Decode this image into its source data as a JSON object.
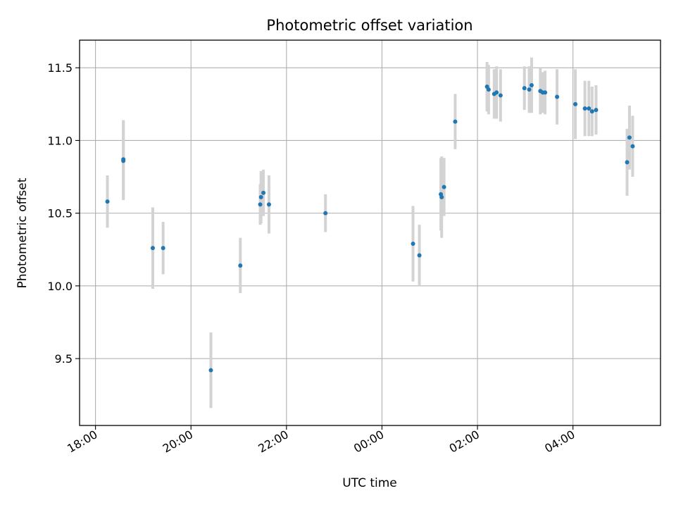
{
  "chart_data": {
    "type": "scatter",
    "title": "Photometric offset variation",
    "xlabel": "UTC time",
    "ylabel": "Photometric offset",
    "x_is_time": true,
    "xlim": [
      "17:40",
      "05:50 +1d"
    ],
    "ylim": [
      9.04,
      11.69
    ],
    "x_ticks": [
      "18:00",
      "20:00",
      "22:00",
      "00:00",
      "02:00",
      "04:00"
    ],
    "y_ticks": [
      "9.5",
      "10.0",
      "10.5",
      "11.0",
      "11.5"
    ],
    "grid": true,
    "legend": "none",
    "colors": {
      "marker": "#1f77b4",
      "errorbar": "#d3d3d3",
      "grid": "#b0b0b0"
    },
    "series": [
      {
        "points": [
          {
            "t": "18:15",
            "y": 10.58,
            "err": 0.18
          },
          {
            "t": "18:35",
            "y": 10.87,
            "err": 0.27
          },
          {
            "t": "18:35",
            "y": 10.86,
            "err": 0.27
          },
          {
            "t": "19:12",
            "y": 10.26,
            "err": 0.28
          },
          {
            "t": "19:25",
            "y": 10.26,
            "err": 0.18
          },
          {
            "t": "20:25",
            "y": 9.42,
            "err": 0.26
          },
          {
            "t": "21:02",
            "y": 10.14,
            "err": 0.19
          },
          {
            "t": "21:27",
            "y": 10.56,
            "err": 0.14
          },
          {
            "t": "21:28",
            "y": 10.61,
            "err": 0.18
          },
          {
            "t": "21:31",
            "y": 10.64,
            "err": 0.16
          },
          {
            "t": "21:38",
            "y": 10.56,
            "err": 0.2
          },
          {
            "t": "22:49",
            "y": 10.5,
            "err": 0.13
          },
          {
            "t": "00:39",
            "y": 10.29,
            "err": 0.26
          },
          {
            "t": "00:47",
            "y": 10.21,
            "err": 0.21
          },
          {
            "t": "01:14",
            "y": 10.63,
            "err": 0.25
          },
          {
            "t": "01:15",
            "y": 10.61,
            "err": 0.28
          },
          {
            "t": "01:18",
            "y": 10.68,
            "err": 0.2
          },
          {
            "t": "01:32",
            "y": 11.13,
            "err": 0.19
          },
          {
            "t": "02:12",
            "y": 11.37,
            "err": 0.17
          },
          {
            "t": "02:14",
            "y": 11.35,
            "err": 0.17
          },
          {
            "t": "02:21",
            "y": 11.32,
            "err": 0.17
          },
          {
            "t": "02:24",
            "y": 11.33,
            "err": 0.18
          },
          {
            "t": "02:29",
            "y": 11.31,
            "err": 0.18
          },
          {
            "t": "02:59",
            "y": 11.36,
            "err": 0.15
          },
          {
            "t": "03:05",
            "y": 11.35,
            "err": 0.16
          },
          {
            "t": "03:08",
            "y": 11.38,
            "err": 0.19
          },
          {
            "t": "03:19",
            "y": 11.34,
            "err": 0.16
          },
          {
            "t": "03:22",
            "y": 11.33,
            "err": 0.14
          },
          {
            "t": "03:25",
            "y": 11.33,
            "err": 0.15
          },
          {
            "t": "03:40",
            "y": 11.3,
            "err": 0.19
          },
          {
            "t": "04:03",
            "y": 11.25,
            "err": 0.24
          },
          {
            "t": "04:15",
            "y": 11.22,
            "err": 0.19
          },
          {
            "t": "04:20",
            "y": 11.22,
            "err": 0.19
          },
          {
            "t": "04:24",
            "y": 11.2,
            "err": 0.17
          },
          {
            "t": "04:29",
            "y": 11.21,
            "err": 0.17
          },
          {
            "t": "05:08",
            "y": 10.85,
            "err": 0.23
          },
          {
            "t": "05:11",
            "y": 11.02,
            "err": 0.22
          },
          {
            "t": "05:15",
            "y": 10.96,
            "err": 0.21
          }
        ]
      }
    ]
  }
}
